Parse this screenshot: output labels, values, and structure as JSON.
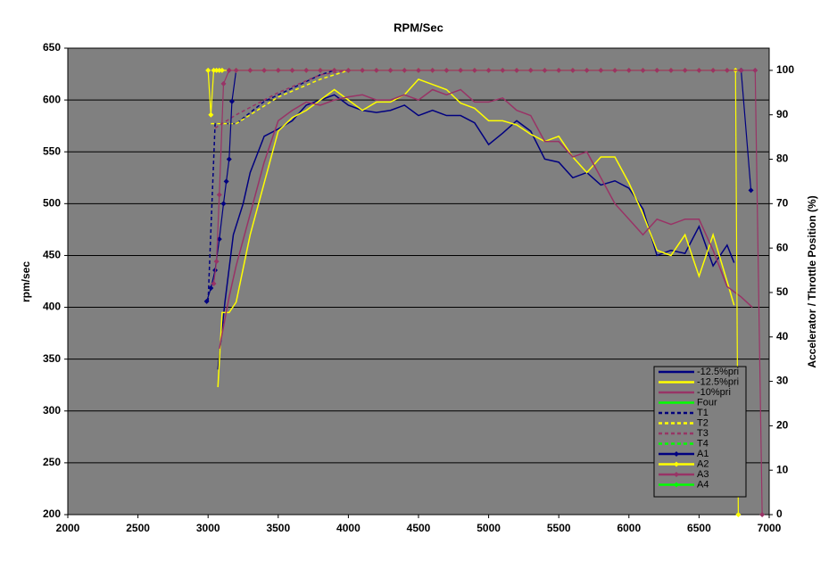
{
  "chart_data": {
    "type": "line",
    "title": "RPM/Sec",
    "y_label": "rpm/sec",
    "y2_label": "Accelerator / Throttle Position (%)",
    "xlim": [
      2000,
      7000
    ],
    "xticks": [
      2000,
      2500,
      3000,
      3500,
      4000,
      4500,
      5000,
      5500,
      6000,
      6500,
      7000
    ],
    "ylim": [
      200,
      650
    ],
    "yticks": [
      200,
      250,
      300,
      350,
      400,
      450,
      500,
      550,
      600,
      650
    ],
    "y2lim": [
      0,
      105
    ],
    "y2ticks": [
      0,
      10,
      20,
      30,
      40,
      50,
      60,
      70,
      80,
      90,
      100
    ],
    "grid": true,
    "legend": "bottom-right",
    "background": "#808080",
    "series": [
      {
        "name": "-12.5%pri",
        "color": "#000080",
        "x": [
          3070,
          3120,
          3180,
          3250,
          3300,
          3400,
          3500,
          3600,
          3700,
          3800,
          3900,
          4000,
          4100,
          4200,
          4300,
          4400,
          4500,
          4600,
          4700,
          4800,
          4900,
          5000,
          5100,
          5200,
          5300,
          5400,
          5500,
          5600,
          5700,
          5800,
          5900,
          6000,
          6100,
          6200,
          6300,
          6400,
          6500,
          6600,
          6700,
          6750
        ],
        "values": [
          340,
          405,
          470,
          500,
          530,
          565,
          572,
          580,
          595,
          600,
          605,
          595,
          590,
          588,
          590,
          595,
          585,
          590,
          585,
          585,
          578,
          557,
          568,
          580,
          570,
          543,
          540,
          525,
          530,
          518,
          522,
          515,
          495,
          450,
          455,
          452,
          478,
          440,
          460,
          443
        ]
      },
      {
        "name": "-12.5%pri",
        "color": "#ffff00",
        "x": [
          3070,
          3100,
          3150,
          3200,
          3300,
          3400,
          3500,
          3600,
          3700,
          3800,
          3900,
          4000,
          4100,
          4200,
          4300,
          4400,
          4500,
          4600,
          4700,
          4800,
          4900,
          5000,
          5100,
          5200,
          5300,
          5400,
          5500,
          5600,
          5700,
          5800,
          5900,
          6000,
          6100,
          6200,
          6300,
          6400,
          6500,
          6600,
          6700,
          6750
        ],
        "values": [
          323,
          395,
          395,
          405,
          470,
          520,
          570,
          583,
          590,
          600,
          610,
          600,
          590,
          598,
          598,
          605,
          620,
          615,
          610,
          597,
          592,
          580,
          580,
          576,
          567,
          560,
          565,
          545,
          530,
          545,
          545,
          520,
          490,
          455,
          450,
          470,
          430,
          470,
          425,
          402
        ]
      },
      {
        "name": "-10%pri",
        "color": "#993366",
        "x": [
          3080,
          3150,
          3200,
          3300,
          3400,
          3500,
          3600,
          3700,
          3800,
          3900,
          4000,
          4100,
          4200,
          4300,
          4400,
          4500,
          4600,
          4700,
          4800,
          4900,
          5000,
          5100,
          5200,
          5300,
          5400,
          5500,
          5600,
          5700,
          5800,
          5900,
          6000,
          6100,
          6200,
          6300,
          6400,
          6500,
          6600,
          6700,
          6800,
          6880
        ],
        "values": [
          360,
          410,
          440,
          490,
          540,
          580,
          590,
          598,
          595,
          600,
          603,
          605,
          600,
          600,
          605,
          600,
          610,
          605,
          610,
          598,
          598,
          602,
          590,
          585,
          560,
          560,
          545,
          550,
          525,
          500,
          485,
          470,
          485,
          480,
          485,
          485,
          455,
          420,
          410,
          400
        ]
      },
      {
        "name": "Four",
        "color": "#00ff00",
        "x": [],
        "values": []
      },
      {
        "name": "T1",
        "color": "#000080",
        "axis": "y2",
        "dash": true,
        "x": [
          3000,
          3050,
          3200,
          3400,
          3600,
          3800,
          3900
        ],
        "values": [
          48,
          88,
          88,
          93,
          96,
          99,
          100
        ]
      },
      {
        "name": "T2",
        "color": "#ffff00",
        "axis": "y2",
        "dash": true,
        "x": [
          3020,
          3200,
          3500,
          3800,
          4000
        ],
        "values": [
          88,
          88,
          94,
          98,
          100
        ]
      },
      {
        "name": "T3",
        "color": "#993366",
        "axis": "y2",
        "dash": true,
        "x": [
          3050,
          3200,
          3500,
          3800,
          4000
        ],
        "values": [
          87,
          90,
          95,
          99,
          100
        ]
      },
      {
        "name": "T4",
        "color": "#00ff00",
        "axis": "y2",
        "dash": true,
        "x": [],
        "values": []
      },
      {
        "name": "A1",
        "color": "#000080",
        "axis": "y2",
        "marker": "diamond",
        "x": [
          2990,
          3020,
          3050,
          3080,
          3110,
          3130,
          3150,
          3170,
          3200,
          3300,
          3400,
          3500,
          3600,
          3700,
          3800,
          3900,
          4000,
          4100,
          4200,
          4300,
          4400,
          4500,
          4600,
          4700,
          4800,
          4900,
          5000,
          5100,
          5200,
          5300,
          5400,
          5500,
          5600,
          5700,
          5800,
          5900,
          6000,
          6100,
          6200,
          6300,
          6400,
          6500,
          6600,
          6700,
          6800,
          6870
        ],
        "values": [
          48,
          51,
          55,
          62,
          70,
          75,
          80,
          93,
          100,
          100,
          100,
          100,
          100,
          100,
          100,
          100,
          100,
          100,
          100,
          100,
          100,
          100,
          100,
          100,
          100,
          100,
          100,
          100,
          100,
          100,
          100,
          100,
          100,
          100,
          100,
          100,
          100,
          100,
          100,
          100,
          100,
          100,
          100,
          100,
          100,
          73
        ]
      },
      {
        "name": "A2",
        "color": "#ffff00",
        "axis": "y2",
        "marker": "diamond",
        "x": [
          3000,
          3020,
          3040,
          3060,
          3080,
          3100,
          3200,
          3300,
          3400,
          3500,
          3600,
          3700,
          3800,
          3900,
          4000,
          4100,
          4200,
          4300,
          4400,
          4500,
          4600,
          4700,
          4800,
          4900,
          5000,
          5100,
          5200,
          5300,
          5400,
          5500,
          5600,
          5700,
          5800,
          5900,
          6000,
          6100,
          6200,
          6300,
          6400,
          6500,
          6600,
          6700,
          6760,
          6780
        ],
        "values": [
          100,
          90,
          100,
          100,
          100,
          100,
          100,
          100,
          100,
          100,
          100,
          100,
          100,
          100,
          100,
          100,
          100,
          100,
          100,
          100,
          100,
          100,
          100,
          100,
          100,
          100,
          100,
          100,
          100,
          100,
          100,
          100,
          100,
          100,
          100,
          100,
          100,
          100,
          100,
          100,
          100,
          100,
          100,
          0
        ]
      },
      {
        "name": "A3",
        "color": "#993366",
        "axis": "y2",
        "marker": "diamond",
        "x": [
          3040,
          3060,
          3080,
          3110,
          3150,
          3200,
          3300,
          3400,
          3500,
          3600,
          3700,
          3800,
          3900,
          4000,
          4100,
          4200,
          4300,
          4400,
          4500,
          4600,
          4700,
          4800,
          4900,
          5000,
          5100,
          5200,
          5300,
          5400,
          5500,
          5600,
          5700,
          5800,
          5900,
          6000,
          6100,
          6200,
          6300,
          6400,
          6500,
          6600,
          6700,
          6800,
          6900,
          6950
        ],
        "values": [
          52,
          57,
          72,
          97,
          100,
          100,
          100,
          100,
          100,
          100,
          100,
          100,
          100,
          100,
          100,
          100,
          100,
          100,
          100,
          100,
          100,
          100,
          100,
          100,
          100,
          100,
          100,
          100,
          100,
          100,
          100,
          100,
          100,
          100,
          100,
          100,
          100,
          100,
          100,
          100,
          100,
          100,
          100,
          0
        ]
      },
      {
        "name": "A4",
        "color": "#00ff00",
        "axis": "y2",
        "marker": "diamond",
        "x": [],
        "values": []
      }
    ]
  }
}
